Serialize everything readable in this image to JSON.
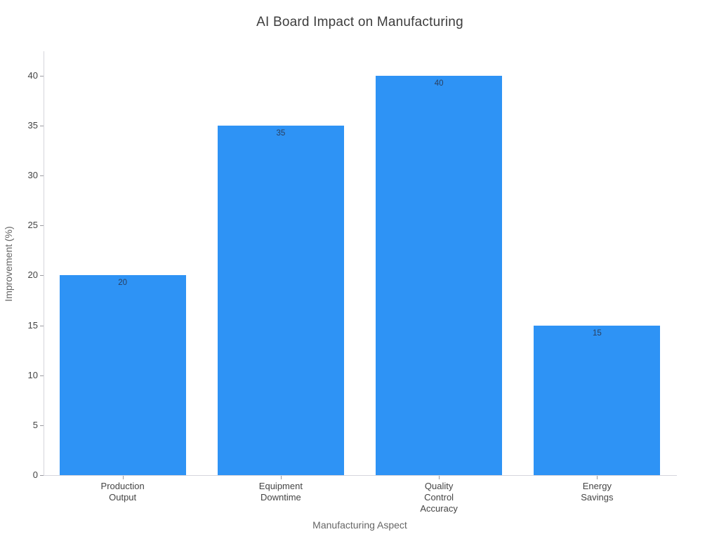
{
  "chart_data": {
    "type": "bar",
    "title": "AI Board Impact on Manufacturing",
    "xlabel": "Manufacturing Aspect",
    "ylabel": "Improvement (%)",
    "categories": [
      "Production Output",
      "Equipment Downtime",
      "Quality Control Accuracy",
      "Energy Savings"
    ],
    "category_display_lines": [
      [
        "Production",
        "Output"
      ],
      [
        "Equipment",
        "Downtime"
      ],
      [
        "Quality",
        "Control",
        "Accuracy"
      ],
      [
        "Energy",
        "Savings"
      ]
    ],
    "values": [
      20,
      35,
      40,
      15
    ],
    "bar_value_labels": [
      "20",
      "35",
      "40",
      "15"
    ],
    "yticks": [
      0,
      5,
      10,
      15,
      20,
      25,
      30,
      35,
      40
    ],
    "ylim": [
      0,
      42.3
    ],
    "grid": false,
    "legend_position": "none",
    "colors": {
      "bar": "#2E93F5",
      "bar_label_text": "#2a3f5f",
      "axis_line": "#d6d6dc",
      "tick_mark": "#9a9aa0",
      "tick_label_text": "#444444",
      "axis_title_text": "#666666",
      "title_text": "#3d3d3d",
      "background": "#ffffff"
    }
  }
}
